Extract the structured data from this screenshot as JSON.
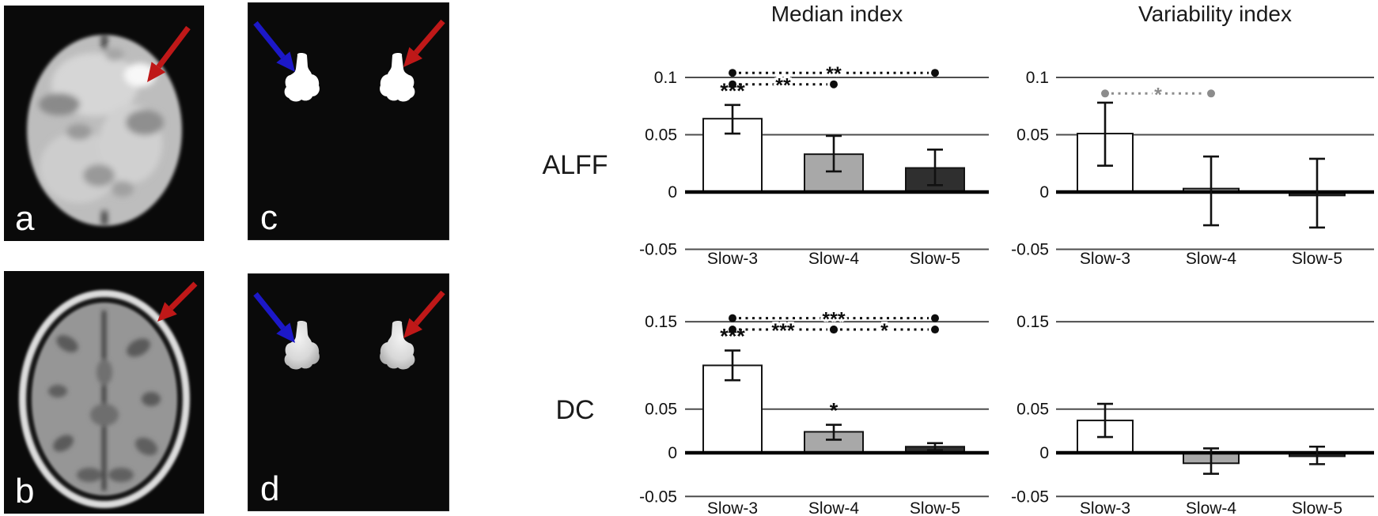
{
  "layout_text": {
    "column_titles": [
      "Median index",
      "Variability index"
    ],
    "row_labels": [
      "ALFF",
      "DC"
    ]
  },
  "colors": {
    "arrow_red": "#bf1818",
    "arrow_blue": "#1c18c8",
    "bar_fills": [
      "#ffffff",
      "#a8a8a8",
      "#2f2f2f"
    ],
    "bar_border": "#141414",
    "zero_axis": "#000000",
    "gridline": "#4d4d4d",
    "sig_black": "#0d0d0d",
    "sig_gray": "#8c8c8c"
  },
  "panels": [
    {
      "key": "a",
      "label": "a",
      "description": "axial functional brain image",
      "arrows": [
        "red"
      ]
    },
    {
      "key": "b",
      "label": "b",
      "description": "axial structural MRI",
      "arrows": [
        "red"
      ]
    },
    {
      "key": "c",
      "label": "c",
      "description": "binary bilateral ROI mask",
      "arrows": [
        "blue",
        "red"
      ]
    },
    {
      "key": "d",
      "label": "d",
      "description": "weighted bilateral ROI mask",
      "arrows": [
        "blue",
        "red"
      ]
    }
  ],
  "chart_data": [
    {
      "type": "bar",
      "row": "ALFF",
      "column": "Median index",
      "row_key": "alff",
      "col_key": "median",
      "categories": [
        "Slow-3",
        "Slow-4",
        "Slow-5"
      ],
      "values": [
        0.064,
        0.033,
        0.021
      ],
      "error_low": [
        0.051,
        0.018,
        0.006
      ],
      "error_high": [
        0.076,
        0.049,
        0.037
      ],
      "yticks": [
        {
          "label": "0.1",
          "value": 0.1
        },
        {
          "label": "0.05",
          "value": 0.05
        },
        {
          "label": "0",
          "value": 0
        },
        {
          "label": "-0.05",
          "value": -0.05
        }
      ],
      "ylim": [
        -0.07,
        0.11
      ],
      "bar_significance": [
        "***",
        "",
        ""
      ],
      "comparison_lines": [
        {
          "from": "Slow-3",
          "to": "Slow-5",
          "label": "**",
          "y": 0.104,
          "gray": false
        },
        {
          "from": "Slow-3",
          "to": "Slow-4",
          "label": "**",
          "y": 0.094,
          "gray": false
        }
      ]
    },
    {
      "type": "bar",
      "row": "ALFF",
      "column": "Variability index",
      "row_key": "alff",
      "col_key": "variability",
      "categories": [
        "Slow-3",
        "Slow-4",
        "Slow-5"
      ],
      "values": [
        0.051,
        0.003,
        -0.003
      ],
      "error_low": [
        0.023,
        -0.029,
        -0.031
      ],
      "error_high": [
        0.078,
        0.031,
        0.029
      ],
      "yticks": [
        {
          "label": "0.1",
          "value": 0.1
        },
        {
          "label": "0.05",
          "value": 0.05
        },
        {
          "label": "0",
          "value": 0
        },
        {
          "label": "-0.05",
          "value": -0.05
        }
      ],
      "ylim": [
        -0.07,
        0.11
      ],
      "bar_significance": [
        "",
        "",
        ""
      ],
      "comparison_lines": [
        {
          "from": "Slow-3",
          "to": "Slow-4",
          "label": "*",
          "y": 0.086,
          "gray": true
        }
      ]
    },
    {
      "type": "bar",
      "row": "DC",
      "column": "Median index",
      "row_key": "dc",
      "col_key": "median",
      "categories": [
        "Slow-3",
        "Slow-4",
        "Slow-5"
      ],
      "values": [
        0.1,
        0.024,
        0.007
      ],
      "error_low": [
        0.083,
        0.015,
        0.003
      ],
      "error_high": [
        0.117,
        0.032,
        0.011
      ],
      "yticks": [
        {
          "label": "0.15",
          "value": 0.15
        },
        {
          "label": "0.05",
          "value": 0.05
        },
        {
          "label": "0",
          "value": 0
        },
        {
          "label": "-0.05",
          "value": -0.05
        }
      ],
      "ylim": [
        -0.07,
        0.16
      ],
      "bar_significance": [
        "***",
        "*",
        ""
      ],
      "comparison_lines": [
        {
          "from": "Slow-3",
          "to": "Slow-5",
          "label": "***",
          "y": 0.154,
          "gray": false
        },
        {
          "from": "Slow-3",
          "to": "Slow-4",
          "label": "***",
          "y": 0.141,
          "gray": false
        },
        {
          "from": "Slow-4",
          "to": "Slow-5",
          "label": "*",
          "y": 0.141,
          "gray": false
        }
      ]
    },
    {
      "type": "bar",
      "row": "DC",
      "column": "Variability index",
      "row_key": "dc",
      "col_key": "variability",
      "categories": [
        "Slow-3",
        "Slow-4",
        "Slow-5"
      ],
      "values": [
        0.037,
        -0.012,
        -0.004
      ],
      "error_low": [
        0.018,
        -0.024,
        -0.013
      ],
      "error_high": [
        0.056,
        0.005,
        0.007
      ],
      "yticks": [
        {
          "label": "0.15",
          "value": 0.15
        },
        {
          "label": "0.05",
          "value": 0.05
        },
        {
          "label": "0",
          "value": 0
        },
        {
          "label": "-0.05",
          "value": -0.05
        }
      ],
      "ylim": [
        -0.07,
        0.16
      ],
      "bar_significance": [
        "",
        "",
        ""
      ],
      "comparison_lines": []
    }
  ]
}
